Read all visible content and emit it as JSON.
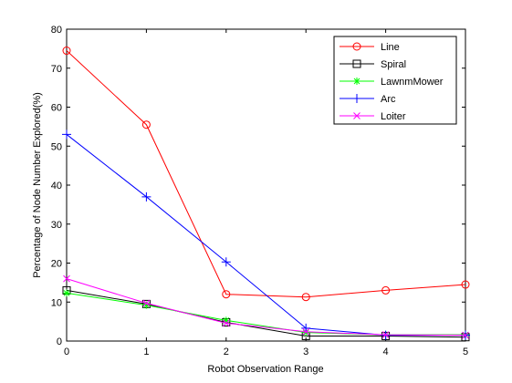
{
  "chart_data": {
    "type": "line",
    "title": "",
    "xlabel": "Robot Observation Range",
    "ylabel": "Percentage of Node Number Explored(%)",
    "x": [
      0,
      1,
      2,
      3,
      4,
      5
    ],
    "xlim": [
      0,
      5
    ],
    "ylim": [
      0,
      80
    ],
    "xticks": [
      0,
      1,
      2,
      3,
      4,
      5
    ],
    "yticks": [
      0,
      10,
      20,
      30,
      40,
      50,
      60,
      70,
      80
    ],
    "grid": false,
    "legend_position": "top-right",
    "series": [
      {
        "name": "Line",
        "color": "#ff0000",
        "marker": "circle",
        "values": [
          74.5,
          55.5,
          12.0,
          11.3,
          13.0,
          14.5
        ]
      },
      {
        "name": "Spiral",
        "color": "#000000",
        "marker": "square",
        "values": [
          13.0,
          9.5,
          4.8,
          1.3,
          1.3,
          1.0
        ]
      },
      {
        "name": "LawnmMower",
        "color": "#00ff00",
        "marker": "asterisk",
        "values": [
          12.3,
          9.2,
          5.3,
          2.2,
          1.6,
          1.6
        ]
      },
      {
        "name": "Arc",
        "color": "#0000ff",
        "marker": "plus",
        "values": [
          53.0,
          37.0,
          20.3,
          3.3,
          1.5,
          1.5
        ]
      },
      {
        "name": "Loiter",
        "color": "#ff00ff",
        "marker": "x",
        "values": [
          16.0,
          9.7,
          4.6,
          2.4,
          1.6,
          1.5
        ]
      }
    ]
  }
}
